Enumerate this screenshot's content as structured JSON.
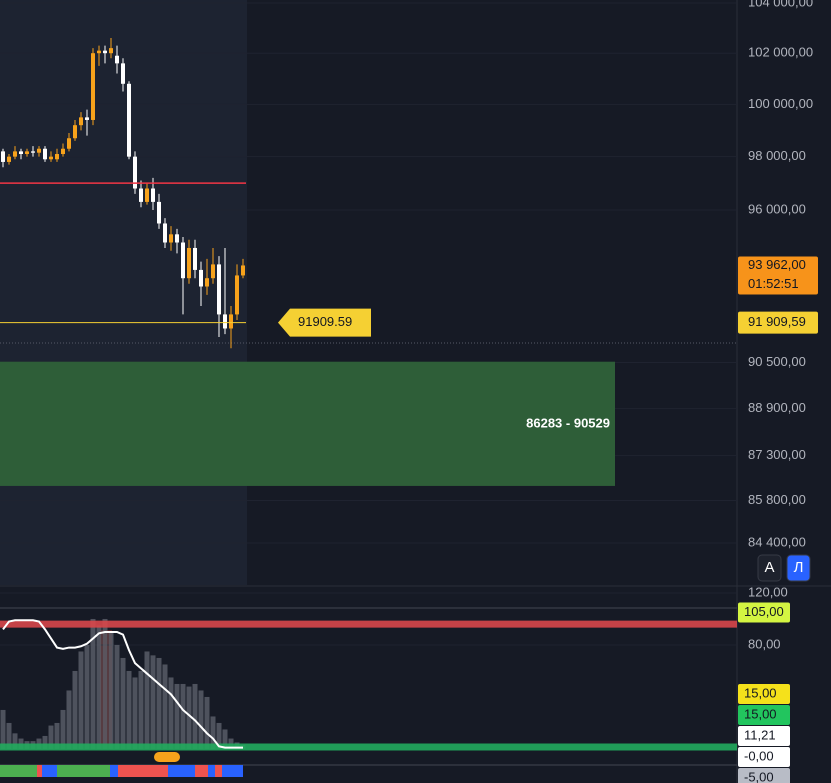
{
  "chart_data": [
    {
      "type": "candlestick",
      "log_scale": true,
      "ylim": [
        104120,
        83040
      ],
      "yticks": [
        {
          "value": 104000,
          "label": "104 000,00"
        },
        {
          "value": 102000,
          "label": "102 000,00"
        },
        {
          "value": 100000,
          "label": "100 000,00"
        },
        {
          "value": 98000,
          "label": "98 000,00"
        },
        {
          "value": 96000,
          "label": "96 000,00"
        },
        {
          "value": 90500,
          "label": "90 500,00"
        },
        {
          "value": 88900,
          "label": "88 900,00"
        },
        {
          "value": 87300,
          "label": "87 300,00"
        },
        {
          "value": 85800,
          "label": "85 800,00"
        },
        {
          "value": 84400,
          "label": "84 400,00"
        }
      ],
      "open": [
        98200,
        97800,
        98000,
        98200,
        98100,
        98200,
        98150,
        98300,
        97900,
        97900,
        98100,
        98300,
        98700,
        99200,
        99500,
        99400,
        102000,
        102100,
        102000,
        101900,
        101600,
        100800,
        98000,
        96800,
        96300,
        96800,
        96300,
        95500,
        94800,
        95100,
        94800,
        93500,
        94600,
        93800,
        93200,
        93500,
        94000,
        92200,
        91700,
        92200,
        93600
      ],
      "high": [
        98300,
        98100,
        98400,
        98300,
        98300,
        98400,
        98400,
        98400,
        98200,
        98300,
        98500,
        98900,
        99400,
        99700,
        99800,
        102200,
        102300,
        102300,
        102600,
        102300,
        101800,
        100900,
        98200,
        97100,
        97000,
        97200,
        96600,
        95700,
        95400,
        95300,
        95000,
        94900,
        94900,
        94100,
        94200,
        94600,
        94300,
        94600,
        92500,
        94000,
        94200
      ],
      "low": [
        97600,
        97700,
        97900,
        97900,
        98000,
        98000,
        98000,
        97800,
        97800,
        97800,
        98000,
        98200,
        98600,
        99000,
        98800,
        99200,
        101500,
        101600,
        101800,
        101200,
        100500,
        97900,
        96600,
        96100,
        96200,
        96000,
        95300,
        94600,
        94500,
        94400,
        92200,
        93300,
        93500,
        92500,
        92900,
        93300,
        91400,
        91500,
        91000,
        92000,
        93500
      ],
      "close": [
        97800,
        98000,
        98200,
        98100,
        98200,
        98150,
        98300,
        97900,
        98000,
        98100,
        98300,
        98700,
        99200,
        99500,
        99400,
        102000,
        102100,
        102000,
        102200,
        101600,
        100800,
        98000,
        96800,
        96300,
        96800,
        96300,
        95500,
        94800,
        95100,
        94800,
        93500,
        94600,
        93800,
        93200,
        93500,
        94000,
        92200,
        91700,
        92200,
        93600,
        93962
      ],
      "up_color": "#f7a21b",
      "down_color": "#ffffff",
      "levels": [
        {
          "value": 97000,
          "color": "#f23645"
        },
        {
          "value": 91909.59,
          "color": "#f5d033",
          "label": "91909.59",
          "axis_label": "91 909,59"
        }
      ],
      "zone": {
        "low": 86283,
        "high": 90529,
        "label": "86283 - 90529",
        "color": "#2e5e38"
      },
      "last_price": {
        "value": 93962,
        "label": "93 962,00",
        "timer": "01:52:51",
        "color": "#f7931a"
      },
      "buttons": [
        "A",
        "Л"
      ]
    },
    {
      "type": "indicator",
      "ylim": [
        124.6,
        -26.2
      ],
      "yticks": [
        {
          "value": 120,
          "label": "120,00"
        },
        {
          "value": 80,
          "label": "80,00"
        }
      ],
      "histogram": [
        30,
        20,
        12,
        8,
        6,
        6,
        8,
        10,
        18,
        20,
        30,
        45,
        60,
        75,
        80,
        100,
        95,
        100,
        90,
        80,
        70,
        60,
        55,
        60,
        75,
        72,
        70,
        65,
        55,
        50,
        50,
        48,
        50,
        45,
        40,
        25,
        20,
        15,
        8,
        5,
        3
      ],
      "line": [
        92,
        98,
        99,
        99,
        99,
        99,
        98,
        92,
        85,
        78,
        77,
        78,
        78,
        79,
        81,
        85,
        89,
        90,
        90,
        90,
        88,
        76,
        66,
        62,
        58,
        54,
        50,
        46,
        42,
        36,
        30,
        26,
        22,
        17,
        12,
        8,
        2,
        1,
        1,
        1,
        1
      ],
      "levels": [
        {
          "value": 96,
          "color": "#d9474b"
        },
        {
          "value": 1.5,
          "color": "#22ab5e"
        }
      ],
      "tags": [
        {
          "value": 105,
          "label": "105,00",
          "color": "#d4f542"
        },
        {
          "value": 15,
          "label": "15,00",
          "color": "#f5e11b"
        },
        {
          "value": 15,
          "label": "15,00",
          "color": "#22c55e"
        },
        {
          "value": 11.21,
          "label": "11,21",
          "color": "#ffffff"
        },
        {
          "value": 0,
          "label": "-0,00",
          "color": "#ffffff"
        },
        {
          "value": -5,
          "label": "-5,00",
          "color": "#b8bcc6"
        }
      ]
    }
  ]
}
